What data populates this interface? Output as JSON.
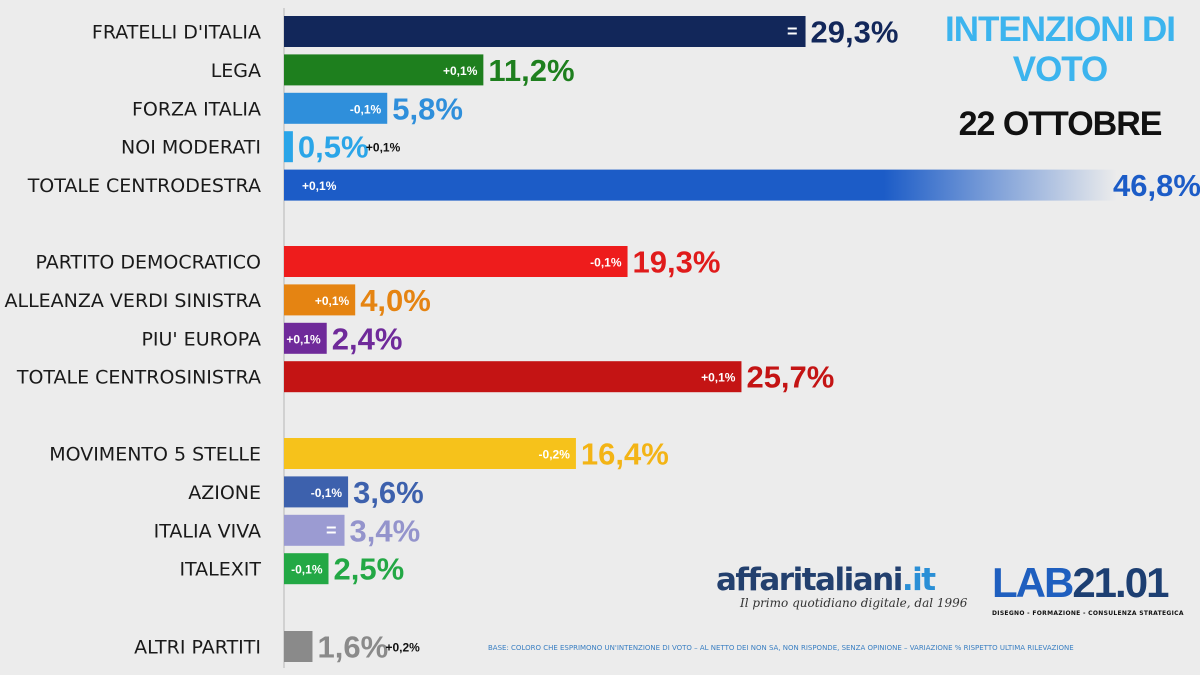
{
  "header": {
    "title": "INTENZIONI DI VOTO",
    "date": "22 OTTOBRE"
  },
  "branding": {
    "affari_name": "affaritaliani",
    "affari_tld": ".it",
    "affari_tagline": "Il primo quotidiano digitale, dal 1996",
    "lab_prefix": "LAB",
    "lab_suffix": "21.01",
    "lab_tagline": "DISEGNO - FORMAZIONE - CONSULENZA STRATEGICA"
  },
  "footnote": "BASE: COLORO CHE ESPRIMONO UN'INTENZIONE DI VOTO – AL NETTO DEI NON SA, NON RISPONDE, SENZA OPINIONE – VARIAZIONE % RISPETTO ULTIMA RILEVAZIONE",
  "colors": {
    "background": "#ececec",
    "title": "#3cb4ee",
    "axis": "#c8c8c8"
  },
  "chart_data": {
    "type": "bar",
    "orientation": "horizontal",
    "xlim": [
      0,
      50
    ],
    "grid": false,
    "legend": "none",
    "bars": [
      {
        "label": "FRATELLI D'ITALIA",
        "value": 29.3,
        "value_text": "29,3%",
        "change": "=",
        "color": "#12275a",
        "value_color": "#12275a",
        "change_pos": "inside",
        "group": 0
      },
      {
        "label": "LEGA",
        "value": 11.2,
        "value_text": "11,2%",
        "change": "+0,1%",
        "color": "#1e7f1e",
        "value_color": "#1e7f1e",
        "change_pos": "inside",
        "group": 0
      },
      {
        "label": "FORZA ITALIA",
        "value": 5.8,
        "value_text": "5,8%",
        "change": "-0,1%",
        "color": "#2f8fdb",
        "value_color": "#2f8fdb",
        "change_pos": "inside",
        "group": 0
      },
      {
        "label": "NOI MODERATI",
        "value": 0.5,
        "value_text": "0,5%",
        "change": "+0,1%",
        "color": "#2aa5e8",
        "value_color": "#2aa5e8",
        "change_pos": "outside",
        "group": 0
      },
      {
        "label": "TOTALE CENTRODESTRA",
        "value": 46.8,
        "value_text": "46,8%",
        "change": "+0,1%",
        "color": "#1c5cc7",
        "value_color": "#1c5cc7",
        "change_pos": "start",
        "fade": true,
        "group": 0
      },
      {
        "label": "PARTITO DEMOCRATICO",
        "value": 19.3,
        "value_text": "19,3%",
        "change": "-0,1%",
        "color": "#ee1c1c",
        "value_color": "#e01b1b",
        "change_pos": "inside",
        "group": 1
      },
      {
        "label": "ALLEANZA VERDI SINISTRA",
        "value": 4.0,
        "value_text": "4,0%",
        "change": "+0,1%",
        "color": "#e58412",
        "value_color": "#e58412",
        "change_pos": "inside",
        "group": 1
      },
      {
        "label": "PIU' EUROPA",
        "value": 2.4,
        "value_text": "2,4%",
        "change": "+0,1%",
        "color": "#6f2a9a",
        "value_color": "#6f2a9a",
        "change_pos": "inside",
        "group": 1
      },
      {
        "label": "TOTALE CENTROSINISTRA",
        "value": 25.7,
        "value_text": "25,7%",
        "change": "+0,1%",
        "color": "#c41414",
        "value_color": "#c41414",
        "change_pos": "inside",
        "group": 1
      },
      {
        "label": "MOVIMENTO 5 STELLE",
        "value": 16.4,
        "value_text": "16,4%",
        "change": "-0,2%",
        "color": "#f6c21b",
        "value_color": "#f3b415",
        "change_pos": "inside",
        "group": 2
      },
      {
        "label": "AZIONE",
        "value": 3.6,
        "value_text": "3,6%",
        "change": "-0,1%",
        "color": "#3d61ad",
        "value_color": "#3d61ad",
        "change_pos": "inside",
        "group": 2
      },
      {
        "label": "ITALIA VIVA",
        "value": 3.4,
        "value_text": "3,4%",
        "change": "=",
        "color": "#9b9bd2",
        "value_color": "#9494cc",
        "change_pos": "inside",
        "group": 2
      },
      {
        "label": "ITALEXIT",
        "value": 2.5,
        "value_text": "2,5%",
        "change": "-0,1%",
        "color": "#23a845",
        "value_color": "#23a845",
        "change_pos": "inside",
        "group": 2
      },
      {
        "label": "ALTRI PARTITI",
        "value": 1.6,
        "value_text": "1,6%",
        "change": "+0,2%",
        "color": "#8a8a8a",
        "value_color": "#8a8a8a",
        "change_pos": "outside",
        "group": 3
      }
    ]
  }
}
